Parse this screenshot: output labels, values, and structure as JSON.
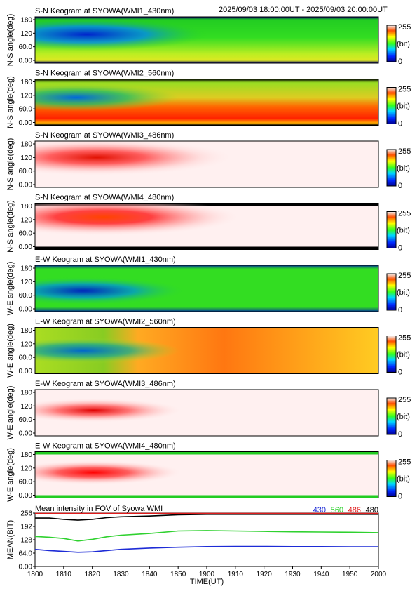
{
  "header": {
    "time_range": "2025/09/03 18:00:00UT - 2025/09/03 20:00:00UT"
  },
  "colorbar": {
    "max_label": "255",
    "unit_label": "(bit)",
    "min_label": "0"
  },
  "y_ticks": [
    "180",
    "120",
    "60.0",
    "0.00"
  ],
  "chart_data": [
    {
      "type": "heatmap",
      "title": "S-N Keogram at SYOWA(WMI1_430nm)",
      "ylabel": "N-S angle(deg)",
      "ylim": [
        0,
        180
      ],
      "colorscale": "rainbow",
      "clim": [
        0,
        255
      ],
      "description_regions": [
        {
          "t_start": 0,
          "t_end": 40,
          "angle_range": [
            90,
            180
          ],
          "value": 20
        },
        {
          "t_start": 40,
          "t_end": 120,
          "angle_range": [
            0,
            180
          ],
          "value": 110
        }
      ]
    },
    {
      "type": "heatmap",
      "title": "S-N Keogram at SYOWA(WMI2_560nm)",
      "ylabel": "N-S angle(deg)",
      "ylim": [
        0,
        180
      ],
      "colorscale": "rainbow",
      "clim": [
        0,
        255
      ]
    },
    {
      "type": "heatmap",
      "title": "S-N Keogram at SYOWA(WMI3_486nm)",
      "ylabel": "N-S angle(deg)",
      "ylim": [
        0,
        180
      ],
      "colorscale": "rainbow",
      "clim": [
        0,
        255
      ]
    },
    {
      "type": "heatmap",
      "title": "S-N Keogram at SYOWA(WMI4_480nm)",
      "ylabel": "N-S angle(deg)",
      "ylim": [
        0,
        180
      ],
      "colorscale": "rainbow",
      "clim": [
        0,
        255
      ]
    },
    {
      "type": "heatmap",
      "title": "E-W Keogram at SYOWA(WMI1_430nm)",
      "ylabel": "W-E angle(deg)",
      "ylim": [
        0,
        180
      ],
      "colorscale": "rainbow",
      "clim": [
        0,
        255
      ]
    },
    {
      "type": "heatmap",
      "title": "E-W Keogram at SYOWA(WMI2_560nm)",
      "ylabel": "W-E angle(deg)",
      "ylim": [
        0,
        180
      ],
      "colorscale": "rainbow",
      "clim": [
        0,
        255
      ]
    },
    {
      "type": "heatmap",
      "title": "E-W Keogram at SYOWA(WMI3_486nm)",
      "ylabel": "W-E angle(deg)",
      "ylim": [
        0,
        180
      ],
      "colorscale": "rainbow",
      "clim": [
        0,
        255
      ]
    },
    {
      "type": "heatmap",
      "title": "E-W Keogram at SYOWA(WMI4_480nm)",
      "ylabel": "W-E angle(deg)",
      "ylim": [
        0,
        180
      ],
      "colorscale": "rainbow",
      "clim": [
        0,
        255
      ]
    },
    {
      "type": "line",
      "title": "Mean intensity in FOV of Syowa WMI",
      "xlabel": "TIME(UT)",
      "ylabel": "MEAN(BIT)",
      "ylim": [
        0,
        256
      ],
      "y_ticks": [
        "256",
        "192",
        "128",
        "64.0",
        "0.00"
      ],
      "x_ticks": [
        "1800",
        "1810",
        "1820",
        "1830",
        "1840",
        "1850",
        "1900",
        "1910",
        "1920",
        "1930",
        "1940",
        "1950",
        "2000"
      ],
      "x_minutes": [
        0,
        5,
        10,
        15,
        20,
        25,
        30,
        40,
        50,
        60,
        70,
        80,
        90,
        100,
        110,
        120
      ],
      "series": [
        {
          "name": "430",
          "color": "#1d2bd6",
          "values": [
            82,
            76,
            72,
            68,
            70,
            76,
            82,
            88,
            92,
            95,
            96,
            96,
            95,
            95,
            94,
            94
          ]
        },
        {
          "name": "560",
          "color": "#2fd12f",
          "values": [
            144,
            140,
            134,
            122,
            130,
            142,
            150,
            158,
            170,
            172,
            170,
            168,
            166,
            165,
            164,
            162
          ]
        },
        {
          "name": "486",
          "color": "#e01a1a",
          "values": [
            254,
            254,
            254,
            254,
            254,
            254,
            254,
            254,
            254,
            254,
            254,
            254,
            254,
            254,
            254,
            254
          ]
        },
        {
          "name": "480",
          "color": "#000000",
          "values": [
            232,
            232,
            226,
            222,
            226,
            234,
            238,
            242,
            248,
            250,
            250,
            250,
            250,
            250,
            250,
            250
          ]
        }
      ]
    }
  ]
}
